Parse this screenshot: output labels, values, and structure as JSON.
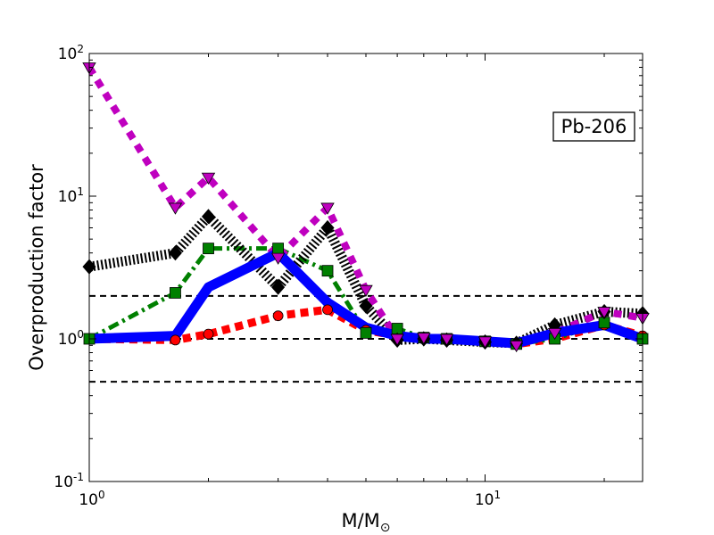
{
  "chart_data": {
    "type": "line",
    "xscale": "log",
    "yscale": "log",
    "xlim": [
      1,
      25
    ],
    "ylim": [
      0.1,
      100
    ],
    "xlabel": "M/M",
    "xlabel_subscript": "⊙",
    "ylabel": "Overproduction factor",
    "annotation": "Pb-206",
    "annotation_position": "upper-right",
    "grid": false,
    "x_ticks": [
      {
        "value": 1,
        "base": "10",
        "exp": "0"
      },
      {
        "value": 10,
        "base": "10",
        "exp": "1"
      }
    ],
    "y_ticks": [
      {
        "value": 0.1,
        "base": "10",
        "exp": "-1"
      },
      {
        "value": 1,
        "base": "10",
        "exp": "0"
      },
      {
        "value": 10,
        "base": "10",
        "exp": "1"
      },
      {
        "value": 100,
        "base": "10",
        "exp": "2"
      }
    ],
    "reference_lines": [
      {
        "y": 0.5,
        "style": "dashed",
        "color": "#000000"
      },
      {
        "y": 1.0,
        "style": "dashed",
        "color": "#000000"
      },
      {
        "y": 2.0,
        "style": "dashed",
        "color": "#000000"
      }
    ],
    "series": [
      {
        "color": "#ff0000",
        "marker": "circle",
        "linestyle": "dotted",
        "x": [
          1,
          1.65,
          2,
          3,
          4,
          5,
          6,
          7,
          8,
          10,
          12,
          15,
          20,
          25
        ],
        "y": [
          1.0,
          0.98,
          1.08,
          1.45,
          1.6,
          1.15,
          1.05,
          1.02,
          1.0,
          0.96,
          0.92,
          1.0,
          1.25,
          1.05
        ]
      },
      {
        "color": "#008000",
        "marker": "square",
        "linestyle": "dashdot",
        "x": [
          1,
          1.65,
          2,
          3,
          4,
          5,
          6,
          7,
          8,
          10,
          12,
          15,
          20,
          25
        ],
        "y": [
          1.0,
          2.1,
          4.3,
          4.3,
          3.0,
          1.1,
          1.18,
          1.02,
          1.0,
          0.96,
          0.92,
          1.0,
          1.3,
          1.0
        ]
      },
      {
        "color": "#000000",
        "marker": "diamond",
        "linestyle": "dotted",
        "x": [
          1,
          1.65,
          2,
          3,
          4,
          5,
          6,
          7,
          8,
          10,
          12,
          15,
          20,
          25
        ],
        "y": [
          3.2,
          4.0,
          7.2,
          2.3,
          6.0,
          1.7,
          0.98,
          1.0,
          0.98,
          0.95,
          0.93,
          1.25,
          1.55,
          1.5
        ]
      },
      {
        "color": "#bf00bf",
        "marker": "triangle-down",
        "linestyle": "dashed",
        "x": [
          1,
          1.65,
          2,
          3,
          4,
          5,
          6,
          7,
          8,
          10,
          12,
          15,
          20,
          25
        ],
        "y": [
          80,
          8.3,
          13.5,
          3.7,
          8.3,
          2.2,
          1.0,
          1.02,
          1.0,
          0.96,
          0.9,
          1.1,
          1.55,
          1.4
        ]
      },
      {
        "color": "#0000ff",
        "marker": "none",
        "linestyle": "solid",
        "x": [
          1,
          1.65,
          2,
          3,
          4,
          5,
          6,
          7,
          8,
          10,
          12,
          15,
          20,
          25
        ],
        "y": [
          1.0,
          1.05,
          2.3,
          4.0,
          1.8,
          1.2,
          1.05,
          1.0,
          1.0,
          0.96,
          0.93,
          1.1,
          1.25,
          1.0
        ]
      }
    ]
  }
}
